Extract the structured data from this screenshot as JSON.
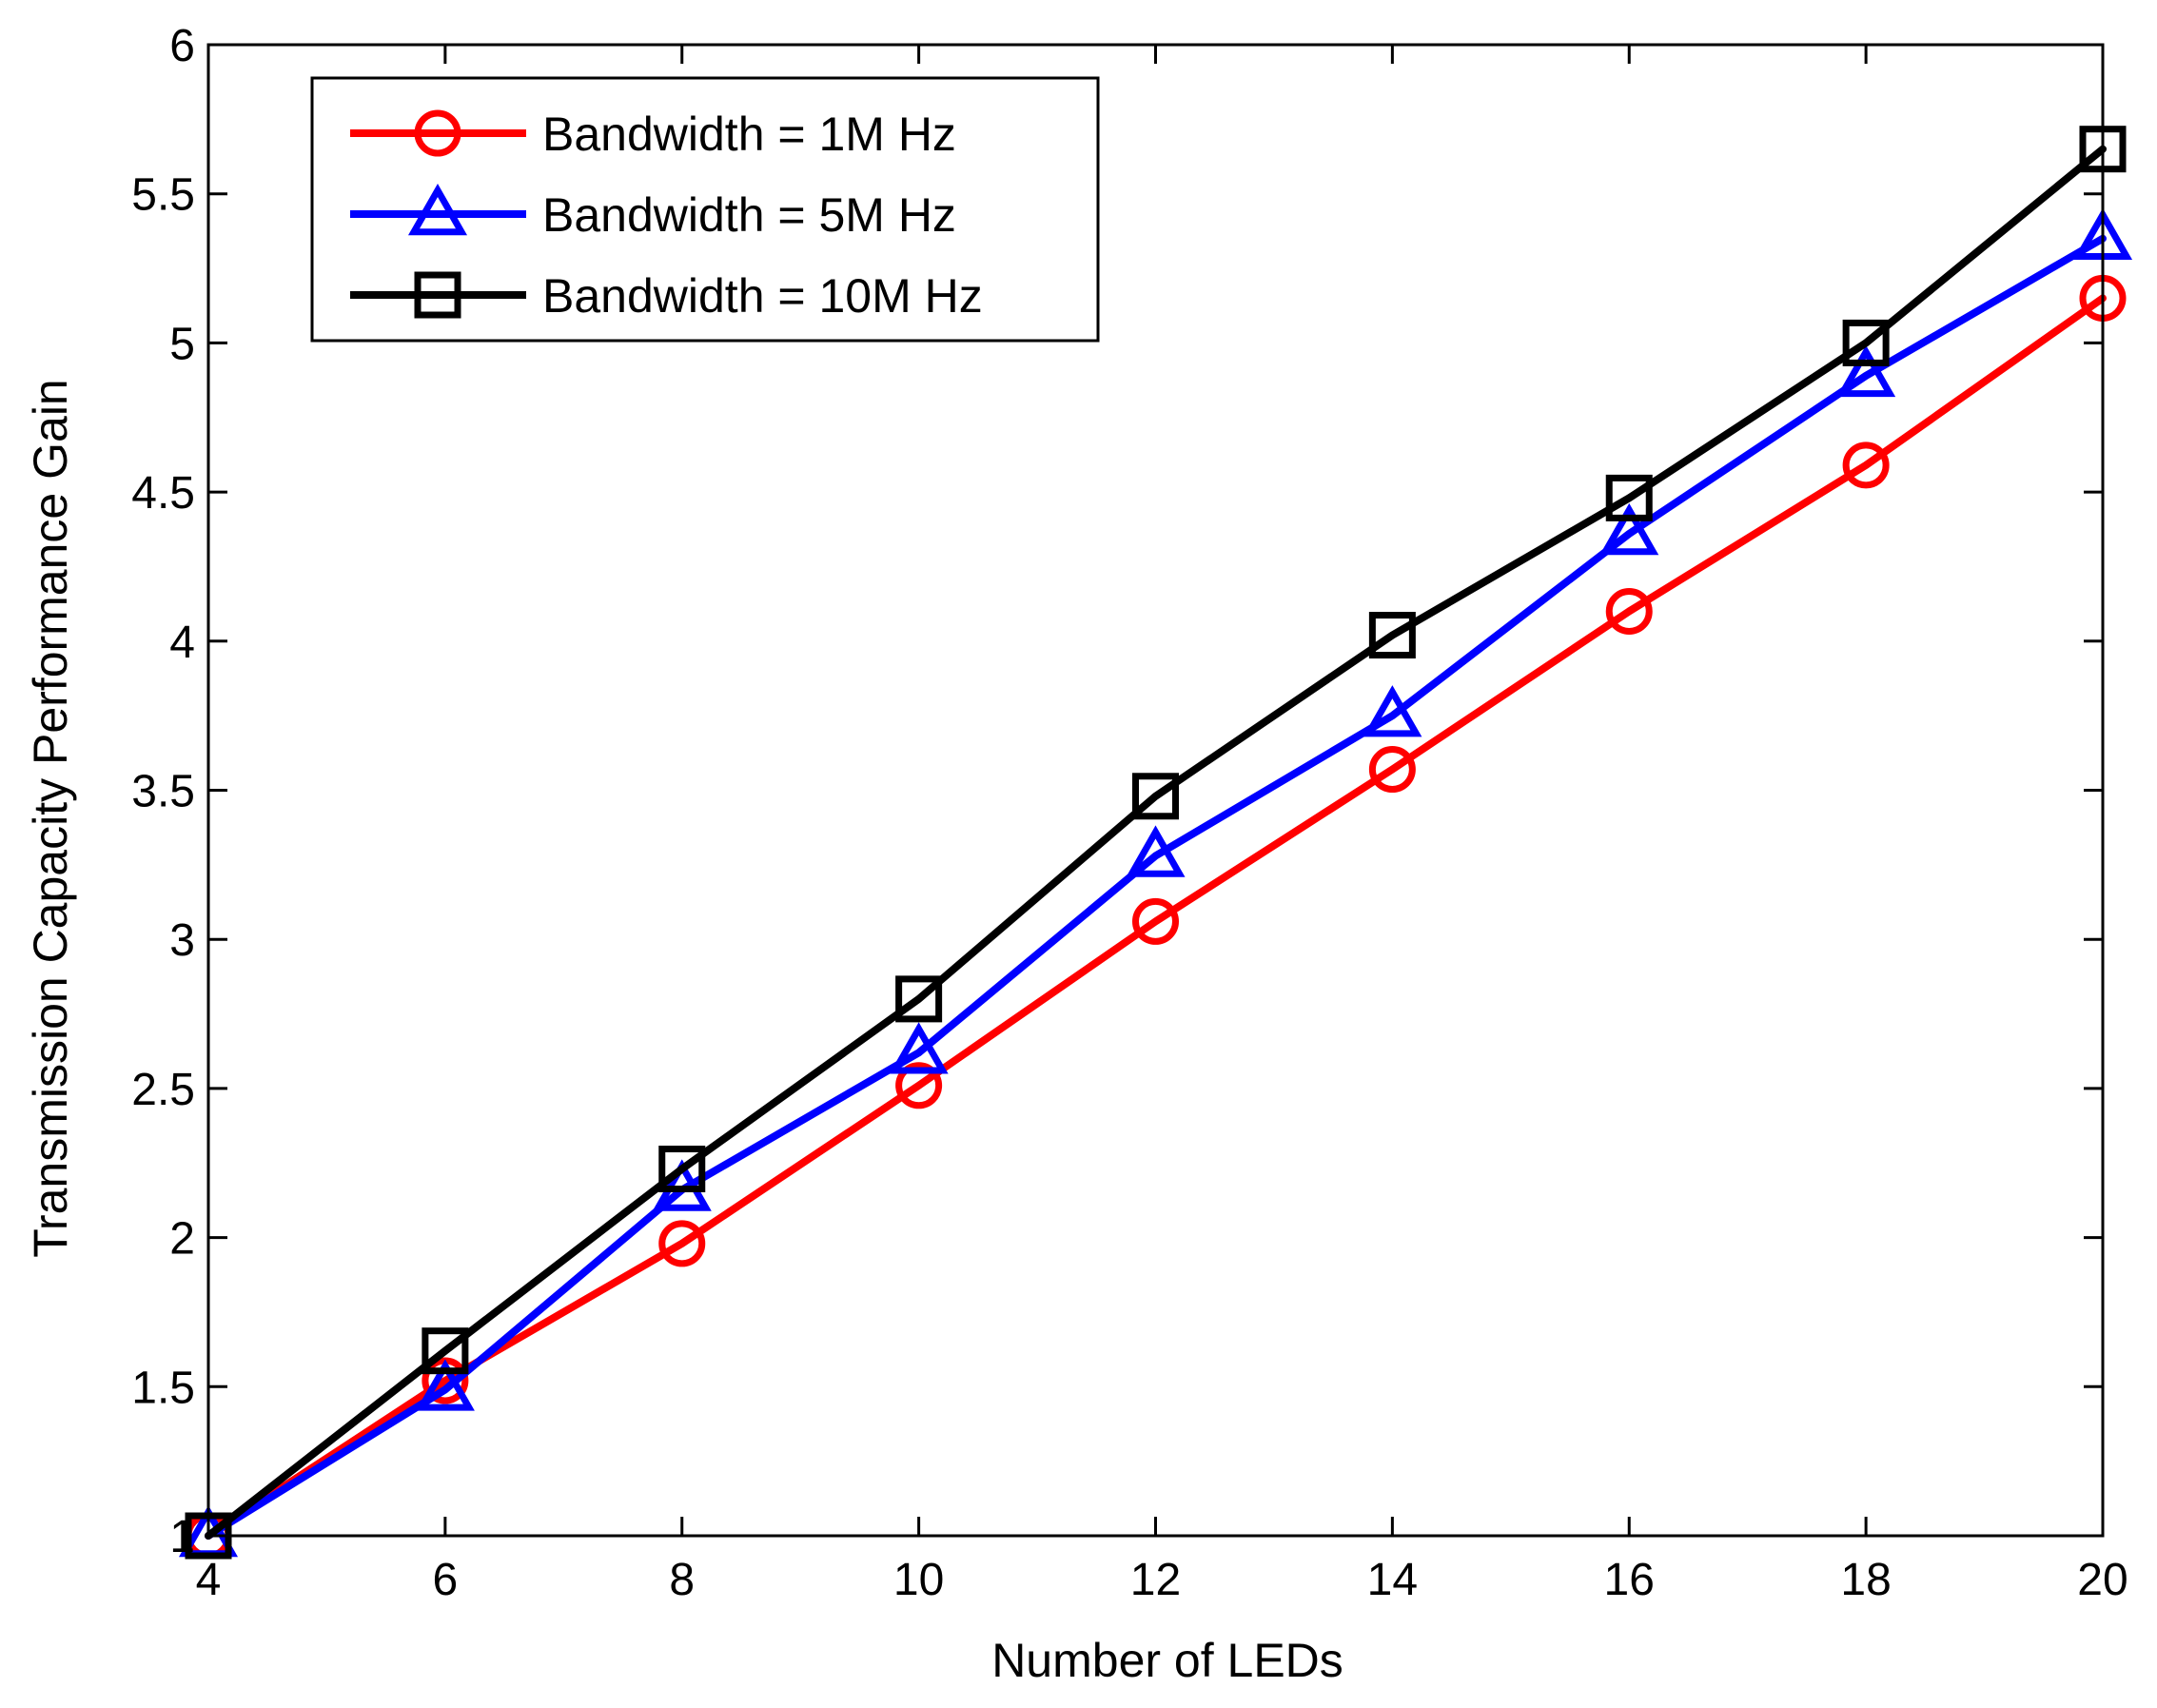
{
  "chart_data": {
    "type": "line",
    "title": "",
    "xlabel": "Number of LEDs",
    "ylabel": "Transmission Capacity Performance Gain",
    "x": [
      4,
      6,
      8,
      10,
      12,
      14,
      16,
      18,
      20
    ],
    "xlim": [
      4,
      20
    ],
    "ylim": [
      1,
      6
    ],
    "xticks": [
      4,
      6,
      8,
      10,
      12,
      14,
      16,
      18,
      20
    ],
    "xtick_labels": [
      "4",
      "6",
      "8",
      "10",
      "12",
      "14",
      "16",
      "18",
      "20"
    ],
    "yticks": [
      1,
      1.5,
      2,
      2.5,
      3,
      3.5,
      4,
      4.5,
      5,
      5.5,
      6
    ],
    "ytick_labels": [
      "1",
      "1.5",
      "2",
      "2.5",
      "3",
      "3.5",
      "4",
      "4.5",
      "5",
      "5.5",
      "6"
    ],
    "grid": false,
    "legend_position": "top-left",
    "series": [
      {
        "name": "Bandwidth = 1M Hz",
        "color": "#ff0000",
        "marker": "circle",
        "values": [
          1.0,
          1.52,
          1.98,
          2.51,
          3.06,
          3.57,
          4.1,
          4.59,
          5.15
        ]
      },
      {
        "name": "Bandwidth = 5M Hz",
        "color": "#0000ff",
        "marker": "triangle",
        "values": [
          1.0,
          1.49,
          2.16,
          2.62,
          3.28,
          3.75,
          4.36,
          4.89,
          5.35
        ]
      },
      {
        "name": "Bandwidth = 10M Hz",
        "color": "#000000",
        "marker": "square",
        "values": [
          1.0,
          1.62,
          2.23,
          2.8,
          3.48,
          4.02,
          4.48,
          5.0,
          5.65
        ]
      }
    ]
  }
}
